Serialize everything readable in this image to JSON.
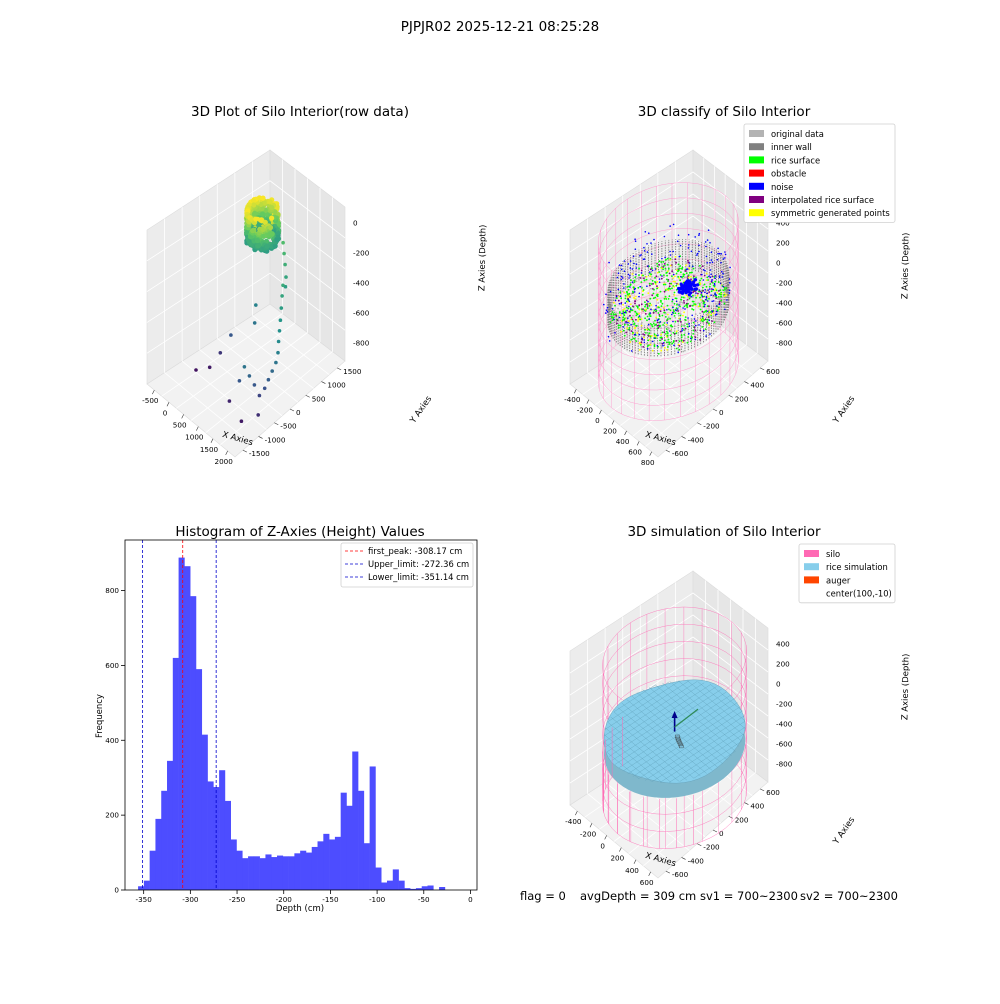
{
  "suptitle": "PJPJR02 2025-12-21 08:25:28",
  "footer": {
    "flag": "flag = 0",
    "avg_depth": "avgDepth = 309 cm",
    "sv1": "sv1 = 700~2300",
    "sv2": "sv2 = 700~2300"
  },
  "chart_data": [
    {
      "id": "raw",
      "type": "scatter",
      "title": "3D Plot of Silo Interior(row data)",
      "xlabel": "X Axies",
      "ylabel": "Y Axies",
      "zlabel": "Z Axies (Depth)",
      "x_ticks": [
        "-500",
        "0",
        "500",
        "1000",
        "1500",
        "2000"
      ],
      "y_ticks": [
        "-1500",
        "-1000",
        "-500",
        "0",
        "500",
        "1000",
        "1500"
      ],
      "z_ticks": [
        "-800",
        "-600",
        "-400",
        "-200",
        "0"
      ],
      "xlim": [
        -650,
        2150
      ],
      "ylim": [
        -1650,
        1650
      ],
      "zlim": [
        -950,
        50
      ],
      "colormap": "viridis",
      "main_cluster": {
        "shape": "ring",
        "center": [
          0,
          900
        ],
        "radius": 320,
        "z_range": [
          -310,
          -100
        ]
      },
      "outliers": [
        {
          "x": 300,
          "y": 1200,
          "z": -320
        },
        {
          "x": 450,
          "y": 1100,
          "z": -350
        },
        {
          "x": 600,
          "y": 1000,
          "z": -380
        },
        {
          "x": 750,
          "y": 900,
          "z": -420
        },
        {
          "x": 850,
          "y": 800,
          "z": -450
        },
        {
          "x": 950,
          "y": 650,
          "z": -400
        },
        {
          "x": 1100,
          "y": 500,
          "z": -420
        },
        {
          "x": 1250,
          "y": 350,
          "z": -450
        },
        {
          "x": 1400,
          "y": 200,
          "z": -480
        },
        {
          "x": 1550,
          "y": 50,
          "z": -500
        },
        {
          "x": 1700,
          "y": -100,
          "z": -520
        },
        {
          "x": 1800,
          "y": -200,
          "z": -560
        },
        {
          "x": 1850,
          "y": -300,
          "z": -600
        },
        {
          "x": 1850,
          "y": -400,
          "z": -640
        },
        {
          "x": 1850,
          "y": -500,
          "z": -680
        },
        {
          "x": 1850,
          "y": -600,
          "z": -720
        },
        {
          "x": 1800,
          "y": -700,
          "z": -760
        },
        {
          "x": 1700,
          "y": -750,
          "z": -700
        },
        {
          "x": 1600,
          "y": -800,
          "z": -650
        },
        {
          "x": 1500,
          "y": -850,
          "z": -600
        },
        {
          "x": 1400,
          "y": -900,
          "z": -700
        },
        {
          "x": 300,
          "y": -200,
          "z": -700
        },
        {
          "x": 200,
          "y": -400,
          "z": -800
        },
        {
          "x": 100,
          "y": -600,
          "z": -880
        },
        {
          "x": -100,
          "y": -800,
          "z": -900
        },
        {
          "x": 500,
          "y": 300,
          "z": -550
        },
        {
          "x": 700,
          "y": 100,
          "z": -600
        },
        {
          "x": 1200,
          "y": -1000,
          "z": -850
        },
        {
          "x": 1700,
          "y": -1100,
          "z": -880
        },
        {
          "x": 2000,
          "y": -900,
          "z": -820
        }
      ]
    },
    {
      "id": "classify",
      "type": "scatter",
      "title": "3D classify of Silo Interior",
      "xlabel": "X Axies",
      "ylabel": "Y Axies",
      "zlabel": "Z Axies (Depth)",
      "x_ticks": [
        "-400",
        "-200",
        "0",
        "200",
        "400",
        "600",
        "800"
      ],
      "y_ticks": [
        "-600",
        "-400",
        "-200",
        "0",
        "200",
        "400",
        "600"
      ],
      "z_ticks": [
        "-800",
        "-600",
        "-400",
        "-200",
        "0",
        "200",
        "400"
      ],
      "xlim": [
        -500,
        900
      ],
      "ylim": [
        -700,
        700
      ],
      "zlim": [
        -950,
        450
      ],
      "legend_position": "top-right",
      "legend": [
        {
          "label": "original data",
          "color": "#b3b3b3"
        },
        {
          "label": "inner wall",
          "color": "#808080"
        },
        {
          "label": "rice surface",
          "color": "#00ff00"
        },
        {
          "label": "obstacle",
          "color": "#ff0000"
        },
        {
          "label": "noise",
          "color": "#0000ff"
        },
        {
          "label": "interpolated rice surface",
          "color": "#800080"
        },
        {
          "label": "symmetric generated points",
          "color": "#ffff00"
        }
      ],
      "silo": {
        "center": [
          100,
          -10
        ],
        "radius": 650,
        "z_range": [
          -900,
          350
        ],
        "color": "#ff8fc8"
      },
      "rice_surface_z": -310
    },
    {
      "id": "hist",
      "type": "bar",
      "title": "Histogram of Z-Axies (Height) Values",
      "xlabel": "Depth (cm)",
      "ylabel": "Frequency",
      "bar_color": "#4d4dff",
      "xlim": [
        -370,
        7
      ],
      "ylim": [
        0,
        935
      ],
      "x_ticks": [
        -350,
        -300,
        -250,
        -200,
        -150,
        -100,
        -50,
        0
      ],
      "y_ticks": [
        0,
        200,
        400,
        600,
        800
      ],
      "bin_width": 6.2,
      "bin_start": -356,
      "values": [
        10,
        25,
        105,
        190,
        265,
        345,
        620,
        888,
        865,
        785,
        590,
        415,
        290,
        275,
        320,
        238,
        135,
        105,
        85,
        90,
        90,
        85,
        95,
        88,
        92,
        90,
        90,
        98,
        105,
        100,
        115,
        130,
        150,
        135,
        142,
        260,
        225,
        370,
        265,
        125,
        330,
        60,
        20,
        25,
        55,
        25,
        5,
        3,
        5,
        10,
        12,
        0,
        8
      ],
      "lines": [
        {
          "label": "first_peak: -308.17 cm",
          "x": -308.17,
          "color": "#ff0000"
        },
        {
          "label": "Upper_limit: -272.36 cm",
          "x": -272.36,
          "color": "#0000cc"
        },
        {
          "label": "Lower_limit: -351.14 cm",
          "x": -351.14,
          "color": "#0000cc"
        }
      ],
      "legend_position": "top-right"
    },
    {
      "id": "sim",
      "type": "scatter",
      "title": "3D simulation of Silo Interior",
      "xlabel": "X Axies",
      "ylabel": "Y Axies",
      "zlabel": "Z Axies (Depth)",
      "x_ticks": [
        "-400",
        "-200",
        "0",
        "200",
        "400",
        "600"
      ],
      "y_ticks": [
        "-600",
        "-400",
        "-200",
        "0",
        "200",
        "400",
        "600"
      ],
      "z_ticks": [
        "-800",
        "-600",
        "-400",
        "-200",
        "0",
        "200",
        "400"
      ],
      "xlim": [
        -550,
        750
      ],
      "ylim": [
        -700,
        700
      ],
      "zlim": [
        -950,
        450
      ],
      "legend_position": "top-right",
      "legend": [
        {
          "label": "silo",
          "color": "#ff69b4"
        },
        {
          "label": "rice simulation",
          "color": "#87ceeb"
        },
        {
          "label": "auger",
          "color": "#ff4500"
        },
        {
          "label": "center(100,-10)",
          "color": ""
        }
      ],
      "silo": {
        "center": [
          100,
          -10
        ],
        "radius": 650,
        "z_range": [
          -900,
          350
        ],
        "color": "#ff69b4"
      },
      "rice_surface_z": -309
    }
  ]
}
